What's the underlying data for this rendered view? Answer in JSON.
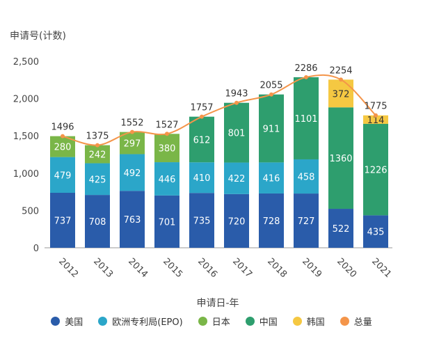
{
  "chart_data": {
    "type": "bar",
    "stacked": true,
    "ylabel": "申请号(计数)",
    "xlabel": "申请日-年",
    "ylim": [
      0,
      2500
    ],
    "yticks": [
      0,
      500,
      1000,
      1500,
      2000,
      2500
    ],
    "ytick_labels": [
      "0",
      "500",
      "1,000",
      "1,500",
      "2,000",
      "2,500"
    ],
    "categories": [
      "2012",
      "2013",
      "2014",
      "2015",
      "2016",
      "2017",
      "2018",
      "2019",
      "2020",
      "2021"
    ],
    "series": [
      {
        "name": "美国",
        "color": "#2a5caa",
        "values": [
          737,
          708,
          763,
          701,
          735,
          720,
          728,
          727,
          522,
          435
        ]
      },
      {
        "name": "欧洲专利局(EPO)",
        "color": "#2ba6c9",
        "values": [
          479,
          425,
          492,
          446,
          410,
          422,
          416,
          458,
          null,
          null
        ]
      },
      {
        "name": "日本",
        "color": "#7ab648",
        "values": [
          280,
          242,
          297,
          380,
          null,
          null,
          null,
          null,
          null,
          null
        ]
      },
      {
        "name": "中国",
        "color": "#2e9e6e",
        "values": [
          null,
          null,
          null,
          null,
          612,
          801,
          911,
          1101,
          1360,
          1226
        ]
      },
      {
        "name": "韩国",
        "color": "#f5c842",
        "values": [
          null,
          null,
          null,
          null,
          null,
          null,
          null,
          null,
          372,
          114
        ]
      }
    ],
    "total": {
      "name": "总量",
      "color": "#f4954a",
      "values": [
        1496,
        1375,
        1552,
        1527,
        1757,
        1943,
        2055,
        2286,
        2254,
        1775
      ]
    },
    "legend_position": "bottom",
    "grid": false
  }
}
